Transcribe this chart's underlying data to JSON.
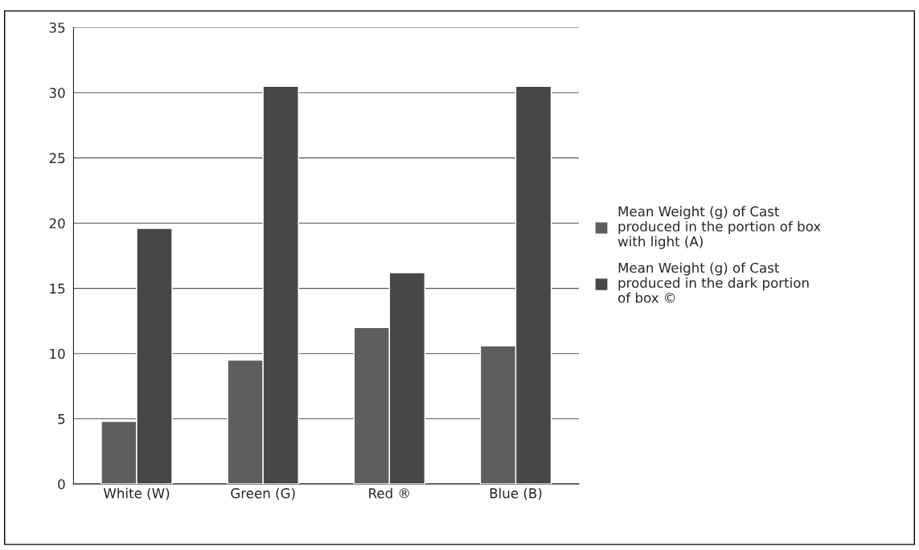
{
  "chart_data": {
    "type": "bar",
    "categories": [
      "White (W)",
      "Green (G)",
      "Red ®",
      "Blue (B)"
    ],
    "series": [
      {
        "name": "Mean Weight (g) of Cast produced in the portion of box with light (A)",
        "color": "#5e5e5e",
        "values": [
          4.8,
          9.5,
          12.0,
          10.6
        ]
      },
      {
        "name": "Mean Weight (g) of Cast produced in the dark portion of box ©",
        "color": "#474747",
        "values": [
          19.6,
          30.5,
          16.2,
          30.5
        ]
      }
    ],
    "ylim": [
      0,
      35
    ],
    "yticks": [
      0,
      5,
      10,
      15,
      20,
      25,
      30,
      35
    ],
    "grid": "y",
    "legend": "right"
  }
}
